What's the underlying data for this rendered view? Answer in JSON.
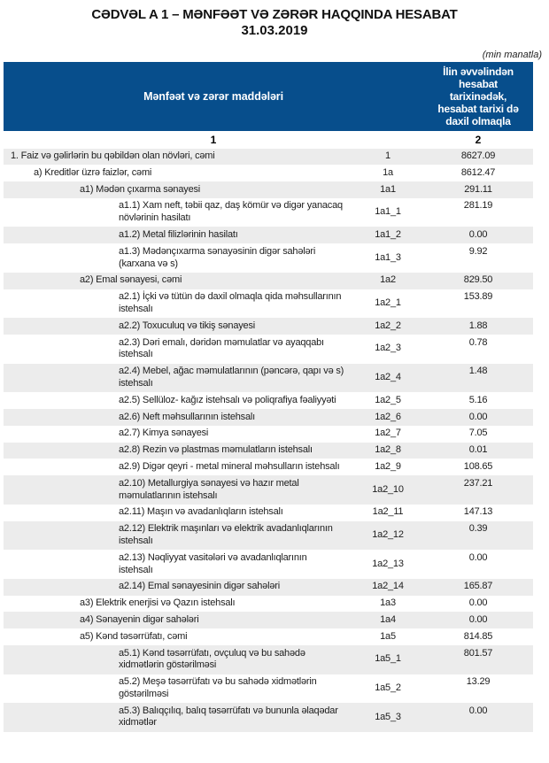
{
  "page": {
    "title": "CƏDVƏL A 1 – MƏNFƏƏT VƏ ZƏRƏR HAQQINDA HESABAT",
    "date": "31.03.2019",
    "unit_note": "(min manatla)"
  },
  "table": {
    "header": {
      "items_label": "Mənfəət və zərər maddələri",
      "period_label": "İlin əvvəlindən\nhesabat\ntarixinədək,\nhesabat tarixi də\ndaxil olmaqla",
      "col_num_items": "1",
      "col_num_value": "2"
    },
    "rows": [
      {
        "name": "1. Faiz və gəlirlərin bu qəbildən olan növləri, cəmi",
        "code": "1",
        "value": "8627.09",
        "indent": 0
      },
      {
        "name": "a) Kreditlər üzrə faizlər, cəmi",
        "code": "1a",
        "value": "8612.47",
        "indent": 1
      },
      {
        "name": "a1) Mədən çıxarma sənayesi",
        "code": "1a1",
        "value": "291.11",
        "indent": 2
      },
      {
        "name": "a1.1) Xam neft, təbii qaz, daş kömür və digər yanacaq\nnövlərinin hasilatı",
        "code": "1a1_1",
        "value": "281.19",
        "indent": 3
      },
      {
        "name": "a1.2) Metal filizlərinin hasilatı",
        "code": "1a1_2",
        "value": "0.00",
        "indent": 3
      },
      {
        "name": "a1.3) Mədənçıxarma sənayəsinin digər sahələri\n(karxana və s)",
        "code": "1a1_3",
        "value": "9.92",
        "indent": 3
      },
      {
        "name": "a2) Emal sənayesi, cəmi",
        "code": "1a2",
        "value": "829.50",
        "indent": 2
      },
      {
        "name": "a2.1) İçki və tütün də daxil olmaqla qida məhsullarının\nistehsalı",
        "code": "1a2_1",
        "value": "153.89",
        "indent": 3
      },
      {
        "name": "a2.2) Toxuculuq və tikiş sənayesi",
        "code": "1a2_2",
        "value": "1.88",
        "indent": 3
      },
      {
        "name": "a2.3) Dəri emalı, dəridən məmulatlar və ayaqqabı\nistehsalı",
        "code": "1a2_3",
        "value": "0.78",
        "indent": 3
      },
      {
        "name": "a2.4) Mebel, ağac məmulatlarının (pəncərə, qapı və s)\nistehsalı",
        "code": "1a2_4",
        "value": "1.48",
        "indent": 3
      },
      {
        "name": "a2.5) Sellüloz- kağız istehsalı və poliqrafiya fəaliyyəti",
        "code": "1a2_5",
        "value": "5.16",
        "indent": 3
      },
      {
        "name": "a2.6) Neft məhsullarının istehsalı",
        "code": "1a2_6",
        "value": "0.00",
        "indent": 3
      },
      {
        "name": "a2.7) Kimya sənayesi",
        "code": "1a2_7",
        "value": "7.05",
        "indent": 3
      },
      {
        "name": "a2.8) Rezin və plastmas məmulatların istehsalı",
        "code": "1a2_8",
        "value": "0.01",
        "indent": 3
      },
      {
        "name": "a2.9) Digər qeyri - metal mineral məhsulların istehsalı",
        "code": "1a2_9",
        "value": "108.65",
        "indent": 3
      },
      {
        "name": "a2.10) Metallurgiya sənayesi və hazır metal\nməmulatlarının istehsalı",
        "code": "1a2_10",
        "value": "237.21",
        "indent": 3
      },
      {
        "name": "a2.11) Maşın və avadanlıqların istehsalı",
        "code": "1a2_11",
        "value": "147.13",
        "indent": 3
      },
      {
        "name": "a2.12) Elektrik maşınları və elektrik avadanlıqlarının\nistehsalı",
        "code": "1a2_12",
        "value": "0.39",
        "indent": 3
      },
      {
        "name": "a2.13) Nəqliyyat vasitələri və avadanlıqlarının\nistehsalı",
        "code": "1a2_13",
        "value": "0.00",
        "indent": 3
      },
      {
        "name": "a2.14) Emal sənayesinin digər sahələri",
        "code": "1a2_14",
        "value": "165.87",
        "indent": 3
      },
      {
        "name": "a3) Elektrik enerjisi və Qazın istehsalı",
        "code": "1a3",
        "value": "0.00",
        "indent": 2
      },
      {
        "name": "a4) Sənayenin digər sahələri",
        "code": "1a4",
        "value": "0.00",
        "indent": 2
      },
      {
        "name": "a5) Kənd təsərrüfatı, cəmi",
        "code": "1a5",
        "value": "814.85",
        "indent": 2
      },
      {
        "name": "a5.1) Kənd təsərrüfatı, ovçuluq və bu sahədə\nxidmətlərin göstərilməsi",
        "code": "1a5_1",
        "value": "801.57",
        "indent": 3
      },
      {
        "name": "a5.2) Meşə təsərrüfatı və bu sahədə xidmətlərin\ngöstərilməsi",
        "code": "1a5_2",
        "value": "13.29",
        "indent": 3
      },
      {
        "name": "a5.3) Balıqçılıq, balıq təsərrüfatı və bununla əlaqədar\nxidmətlər",
        "code": "1a5_3",
        "value": "0.00",
        "indent": 3
      }
    ]
  },
  "colors": {
    "header_bg": "#074e8c",
    "alt_row_bg": "#ececec",
    "text": "#1c1c1c"
  }
}
